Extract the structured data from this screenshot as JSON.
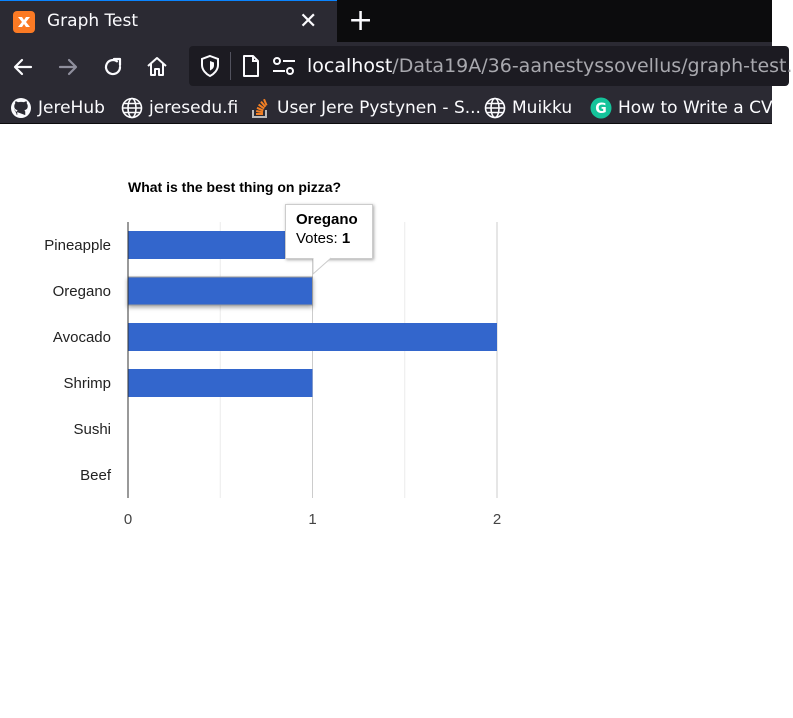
{
  "browser": {
    "tab": {
      "title": "Graph Test",
      "close_glyph": "✕",
      "favicon_icon": "xampp-logo-icon"
    },
    "new_tab_glyph": "+",
    "url": {
      "host": "localhost",
      "path": "/Data19A/36-aanestyssovellus/graph-test."
    },
    "bookmarks": [
      {
        "label": "JereHub",
        "icon": "github-icon"
      },
      {
        "label": "jeresedu.fi",
        "icon": "globe-icon"
      },
      {
        "label": "User Jere Pystynen - S...",
        "icon": "stackoverflow-icon"
      },
      {
        "label": "Muikku",
        "icon": "globe-icon"
      },
      {
        "label": "How to Write a CV",
        "icon": "g-icon"
      }
    ]
  },
  "tooltip": {
    "title": "Oregano",
    "label": "Votes:",
    "value": "1"
  },
  "chart_data": {
    "type": "bar",
    "orientation": "horizontal",
    "title": "What is the best thing on pizza?",
    "categories": [
      "Pineapple",
      "Oregano",
      "Avocado",
      "Shrimp",
      "Sushi",
      "Beef"
    ],
    "values": [
      1,
      1,
      2,
      1,
      0,
      0
    ],
    "xlim": [
      0,
      2
    ],
    "xticks": [
      "0",
      "1",
      "2"
    ],
    "grid": true,
    "bar_color": "#3366cc",
    "highlighted": "Oregano"
  }
}
